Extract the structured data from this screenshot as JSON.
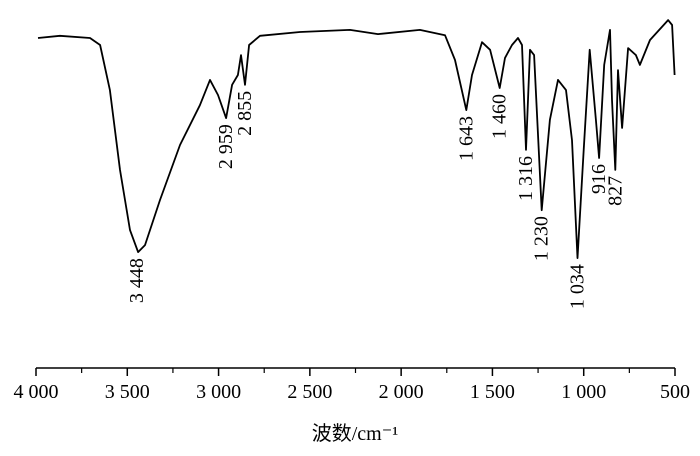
{
  "chart_data": {
    "type": "line",
    "x_label": "波数/cm⁻¹",
    "color": "#000000",
    "x": [
      3989,
      3869,
      3704,
      3649,
      3595,
      3540,
      3485,
      3441,
      3403,
      3321,
      3211,
      3102,
      3047,
      3003,
      2959,
      2926,
      2894,
      2877,
      2855,
      2833,
      2773,
      2554,
      2280,
      2127,
      1897,
      1760,
      1705,
      1643,
      1612,
      1557,
      1513,
      1460,
      1431,
      1393,
      1360,
      1338,
      1316,
      1294,
      1272,
      1230,
      1185,
      1141,
      1097,
      1064,
      1034,
      1000,
      967,
      933,
      916,
      888,
      856,
      845,
      827,
      812,
      790,
      757,
      714,
      692,
      637,
      538,
      516,
      502
    ],
    "values": [
      94.3,
      94.9,
      94.3,
      92.3,
      79.4,
      56.6,
      39.4,
      33.1,
      35.1,
      48,
      63.7,
      75.1,
      82.3,
      78,
      71.4,
      80.9,
      83.7,
      89.4,
      80.9,
      92.3,
      94.9,
      96,
      96.6,
      95.4,
      96.6,
      95.1,
      88,
      73.7,
      83.7,
      93.1,
      90.9,
      80,
      88.6,
      92.3,
      94.3,
      92.3,
      62.3,
      90.9,
      89.4,
      45.1,
      70.9,
      82.3,
      79.4,
      65.1,
      31.4,
      62.3,
      90.9,
      70.9,
      60,
      86.6,
      96.6,
      76.6,
      56.6,
      85.1,
      68.6,
      91.4,
      89.4,
      86.6,
      93.7,
      99.4,
      98,
      83.7
    ],
    "xlim": [
      4000,
      500
    ],
    "ylim": [
      0,
      100
    ],
    "xticks": [
      {
        "value": 4000,
        "label": "4 000"
      },
      {
        "value": 3500,
        "label": "3 500"
      },
      {
        "value": 3000,
        "label": "3 000"
      },
      {
        "value": 2500,
        "label": "2 500"
      },
      {
        "value": 2000,
        "label": "2 000"
      },
      {
        "value": 1500,
        "label": "1 500"
      },
      {
        "value": 1000,
        "label": "1 000"
      },
      500
    ],
    "annotations": [
      {
        "value": 3448,
        "label": "3 448"
      },
      {
        "value": 2959,
        "label": "2 959"
      },
      {
        "value": 2855,
        "label": "2 855"
      },
      {
        "value": 1643,
        "label": "1 643"
      },
      {
        "value": 1460,
        "label": "1 460"
      },
      {
        "value": 1316,
        "label": "1 316"
      },
      {
        "value": 1230,
        "label": "1 230"
      },
      {
        "value": 1034,
        "label": "1 034"
      },
      916,
      827
    ]
  }
}
